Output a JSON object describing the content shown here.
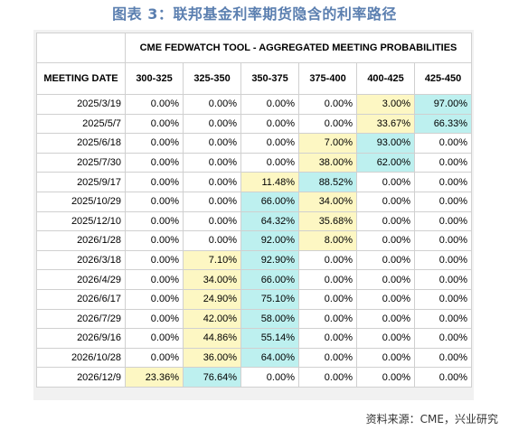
{
  "title": "图表 3：联邦基金利率期货隐含的利率路径",
  "table": {
    "group_header": "CME FEDWATCH TOOL - AGGREGATED MEETING PROBABILITIES",
    "date_header": "MEETING DATE",
    "columns": [
      "300-325",
      "325-350",
      "350-375",
      "375-400",
      "400-425",
      "425-450"
    ],
    "rows": [
      {
        "date": "2025/3/19",
        "values": [
          "0.00%",
          "0.00%",
          "0.00%",
          "0.00%",
          "3.00%",
          "97.00%"
        ],
        "highlight": [
          "",
          "",
          "",
          "",
          "y",
          "c"
        ]
      },
      {
        "date": "2025/5/7",
        "values": [
          "0.00%",
          "0.00%",
          "0.00%",
          "0.00%",
          "33.67%",
          "66.33%"
        ],
        "highlight": [
          "",
          "",
          "",
          "",
          "y",
          "c"
        ]
      },
      {
        "date": "2025/6/18",
        "values": [
          "0.00%",
          "0.00%",
          "0.00%",
          "7.00%",
          "93.00%",
          "0.00%"
        ],
        "highlight": [
          "",
          "",
          "",
          "y",
          "c",
          ""
        ]
      },
      {
        "date": "2025/7/30",
        "values": [
          "0.00%",
          "0.00%",
          "0.00%",
          "38.00%",
          "62.00%",
          "0.00%"
        ],
        "highlight": [
          "",
          "",
          "",
          "y",
          "c",
          ""
        ]
      },
      {
        "date": "2025/9/17",
        "values": [
          "0.00%",
          "0.00%",
          "11.48%",
          "88.52%",
          "0.00%",
          "0.00%"
        ],
        "highlight": [
          "",
          "",
          "y",
          "c",
          "",
          ""
        ]
      },
      {
        "date": "2025/10/29",
        "values": [
          "0.00%",
          "0.00%",
          "66.00%",
          "34.00%",
          "0.00%",
          "0.00%"
        ],
        "highlight": [
          "",
          "",
          "c",
          "y",
          "",
          ""
        ]
      },
      {
        "date": "2025/12/10",
        "values": [
          "0.00%",
          "0.00%",
          "64.32%",
          "35.68%",
          "0.00%",
          "0.00%"
        ],
        "highlight": [
          "",
          "",
          "c",
          "y",
          "",
          ""
        ]
      },
      {
        "date": "2026/1/28",
        "values": [
          "0.00%",
          "0.00%",
          "92.00%",
          "8.00%",
          "0.00%",
          "0.00%"
        ],
        "highlight": [
          "",
          "",
          "c",
          "y",
          "",
          ""
        ]
      },
      {
        "date": "2026/3/18",
        "values": [
          "0.00%",
          "7.10%",
          "92.90%",
          "0.00%",
          "0.00%",
          "0.00%"
        ],
        "highlight": [
          "",
          "y",
          "c",
          "",
          "",
          ""
        ]
      },
      {
        "date": "2026/4/29",
        "values": [
          "0.00%",
          "34.00%",
          "66.00%",
          "0.00%",
          "0.00%",
          "0.00%"
        ],
        "highlight": [
          "",
          "y",
          "c",
          "",
          "",
          ""
        ]
      },
      {
        "date": "2026/6/17",
        "values": [
          "0.00%",
          "24.90%",
          "75.10%",
          "0.00%",
          "0.00%",
          "0.00%"
        ],
        "highlight": [
          "",
          "y",
          "c",
          "",
          "",
          ""
        ]
      },
      {
        "date": "2026/7/29",
        "values": [
          "0.00%",
          "42.00%",
          "58.00%",
          "0.00%",
          "0.00%",
          "0.00%"
        ],
        "highlight": [
          "",
          "y",
          "c",
          "",
          "",
          ""
        ]
      },
      {
        "date": "2026/9/16",
        "values": [
          "0.00%",
          "44.86%",
          "55.14%",
          "0.00%",
          "0.00%",
          "0.00%"
        ],
        "highlight": [
          "",
          "y",
          "c",
          "",
          "",
          ""
        ]
      },
      {
        "date": "2026/10/28",
        "values": [
          "0.00%",
          "36.00%",
          "64.00%",
          "0.00%",
          "0.00%",
          "0.00%"
        ],
        "highlight": [
          "",
          "y",
          "c",
          "",
          "",
          ""
        ]
      },
      {
        "date": "2026/12/9",
        "values": [
          "23.36%",
          "76.64%",
          "0.00%",
          "0.00%",
          "0.00%",
          "0.00%"
        ],
        "highlight": [
          "y",
          "c",
          "",
          "",
          "",
          ""
        ]
      }
    ]
  },
  "colors": {
    "title": "#5b7fb0",
    "yellow_highlight": "#fdf7c3",
    "cyan_highlight": "#bdf0ef"
  },
  "source": "资料来源：CME，兴业研究"
}
